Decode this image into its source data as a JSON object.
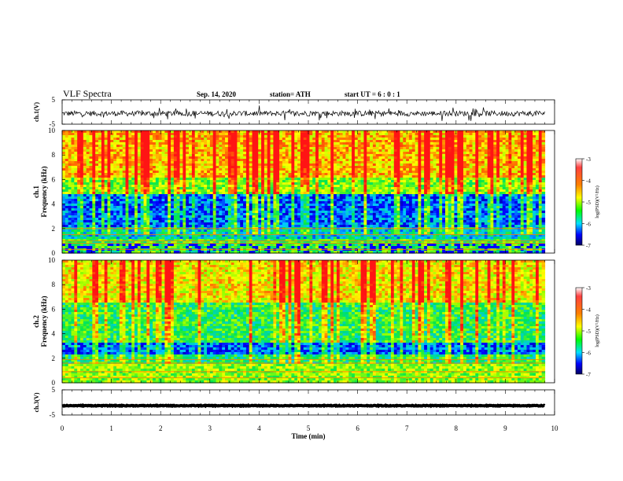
{
  "header": {
    "title": "VLF Spectra",
    "date": "Sep. 14, 2020",
    "station": "station= ATH",
    "start": "start  UT =   6 : 0  : 1"
  },
  "chart_data": [
    {
      "type": "line",
      "name": "ch1-waveform",
      "ylabel": "ch.1(V)",
      "ylim": [
        -5,
        5
      ],
      "yticks": [
        "5",
        "-5"
      ],
      "xlim": [
        0,
        10
      ],
      "data_extent_min": 9.8,
      "baseline_v": -0.6,
      "amplitude_v": 2.2
    },
    {
      "type": "heatmap",
      "name": "ch1-spectrogram",
      "ylabel_top": "ch.1",
      "ylabel": "Frequency (kHz)",
      "ylim": [
        0,
        10
      ],
      "yticks": [
        "0",
        "2",
        "4",
        "6",
        "8",
        "10"
      ],
      "xlim": [
        0,
        10
      ],
      "data_extent_min": 9.8,
      "colorbar": {
        "label": "log(PSD)(V²/Hz)",
        "range": [
          -7,
          -3
        ],
        "ticks": [
          "-3",
          "-4",
          "-5",
          "-6",
          "-7"
        ]
      }
    },
    {
      "type": "heatmap",
      "name": "ch2-spectrogram",
      "ylabel_top": "ch.2",
      "ylabel": "Frequency (kHz)",
      "ylim": [
        0,
        10
      ],
      "yticks": [
        "0",
        "2",
        "4",
        "6",
        "8",
        "10"
      ],
      "xlim": [
        0,
        10
      ],
      "data_extent_min": 9.8,
      "colorbar": {
        "label": "log(PSD)(V²/Hz)",
        "range": [
          -7,
          -3
        ],
        "ticks": [
          "-3",
          "-4",
          "-5",
          "-6",
          "-7"
        ]
      }
    },
    {
      "type": "line",
      "name": "ch3-waveform",
      "ylabel": "ch.3(V)",
      "ylim": [
        -5,
        5
      ],
      "yticks": [
        "5",
        "-5"
      ],
      "xlim": [
        0,
        10
      ],
      "data_extent_min": 9.8,
      "baseline_v": -1.3,
      "amplitude_v": 0.3
    }
  ],
  "xaxis": {
    "label": "Time (min)",
    "ticks": [
      "0",
      "1",
      "2",
      "3",
      "4",
      "5",
      "6",
      "7",
      "8",
      "9",
      "10"
    ]
  },
  "colors": {
    "trace": "#000000",
    "axes": "#000000"
  }
}
